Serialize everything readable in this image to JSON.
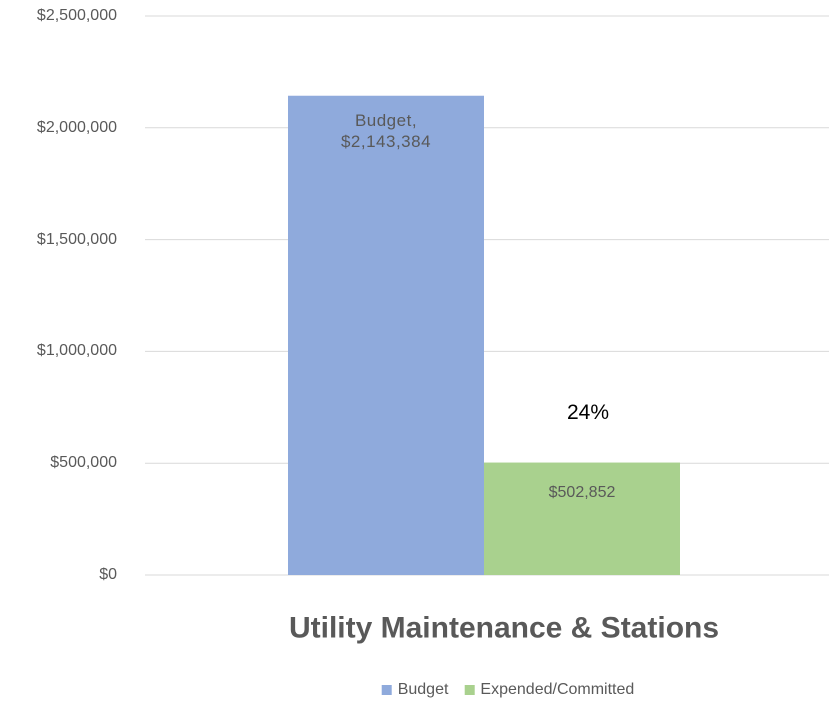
{
  "chart_data": {
    "type": "bar",
    "categories": [
      "Utility Maintenance & Stations"
    ],
    "series": [
      {
        "name": "Budget",
        "color": "#8faadc",
        "values": [
          2143384
        ],
        "value_labels": [
          "Budget, $2,143,384"
        ]
      },
      {
        "name": "Expended/Committed",
        "color": "#a9d18e",
        "values": [
          502852
        ],
        "value_labels": [
          "$502,852"
        ]
      }
    ],
    "annotations": [
      "24%"
    ],
    "ylim": [
      0,
      2500000
    ],
    "yticks": [
      {
        "value": 0,
        "label": "$0"
      },
      {
        "value": 500000,
        "label": "$500,000"
      },
      {
        "value": 1000000,
        "label": "$1,000,000"
      },
      {
        "value": 1500000,
        "label": "$1,500,000"
      },
      {
        "value": 2000000,
        "label": "$2,000,000"
      },
      {
        "value": 2500000,
        "label": "$2,500,000"
      }
    ],
    "grid": true,
    "legend": "bottom"
  }
}
